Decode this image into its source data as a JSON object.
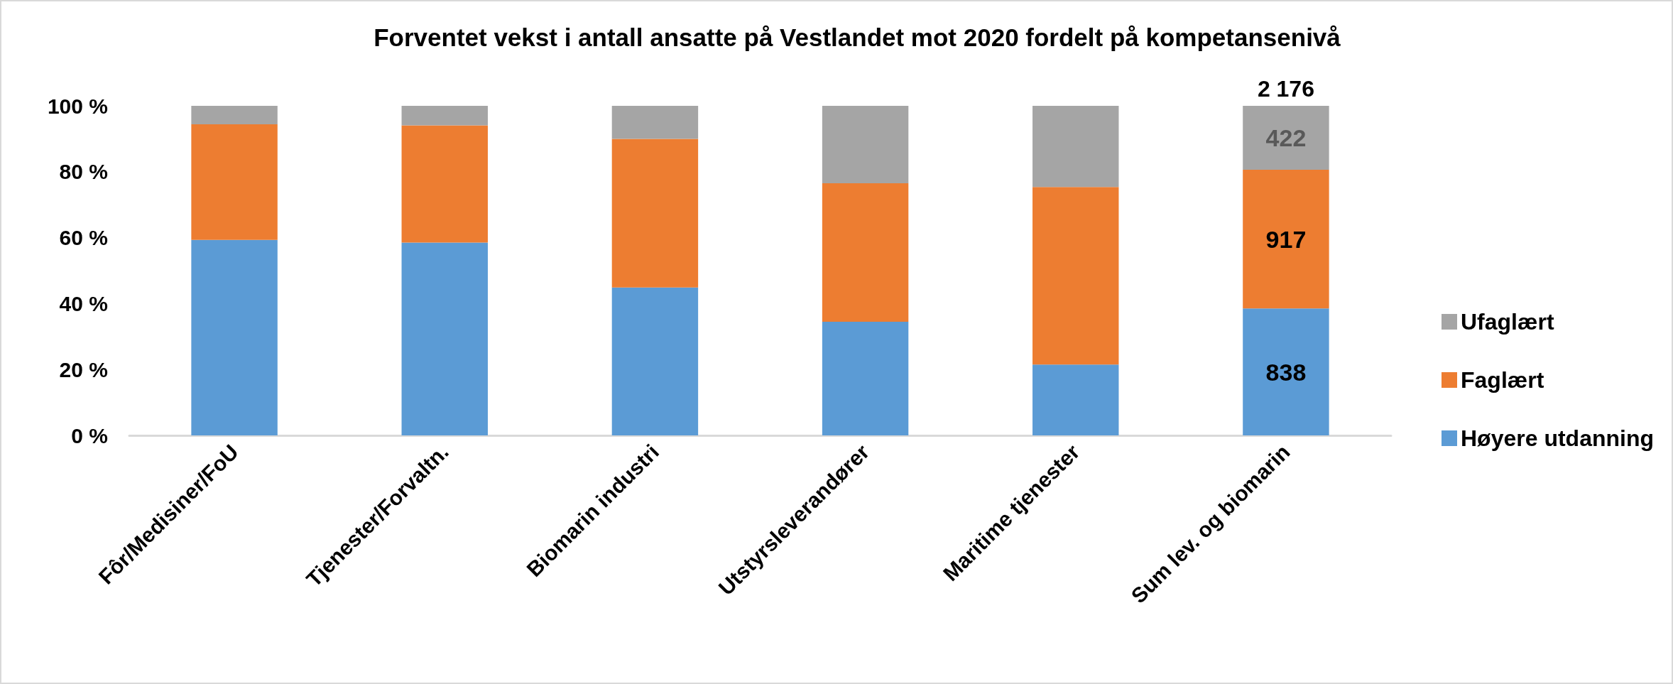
{
  "chart_data": {
    "type": "bar",
    "title": "Forventet vekst i antall ansatte på Vestlandet mot 2020 fordelt på kompetansenivå",
    "categories": [
      "Fôr/Medisiner/FoU",
      "Tjenester/Forvaltn.",
      "Biomarin industri",
      "Utstyrsleverandører",
      "Maritime tjenester",
      "Sum lev. og biomarin"
    ],
    "stacked": true,
    "series": [
      {
        "name": "Høyere utdanning",
        "color": "#5b9bd5",
        "values": [
          59.3,
          58.5,
          44.9,
          34.5,
          21.5,
          38.5
        ]
      },
      {
        "name": "Faglært",
        "color": "#ed7d31",
        "values": [
          35.1,
          35.6,
          45.1,
          42.0,
          53.9,
          42.1
        ]
      },
      {
        "name": "Ufaglært",
        "color": "#a5a5a5",
        "values": [
          5.6,
          5.9,
          10.0,
          23.5,
          24.6,
          19.4
        ]
      }
    ],
    "annotations": [
      "838",
      "917",
      "422",
      {
        "text": "2 176",
        "x": "Sum lev. og biomarin",
        "y": 100
      }
    ],
    "ylim": [
      0,
      100
    ],
    "yticks": [
      {
        "value": 0,
        "label": "0 %"
      },
      {
        "value": 20,
        "label": "20 %"
      },
      {
        "value": 40,
        "label": "40 %"
      },
      {
        "value": 60,
        "label": "60 %"
      },
      {
        "value": 80,
        "label": "80 %"
      },
      {
        "value": 100,
        "label": "100 %"
      }
    ],
    "grid": false,
    "legend": "right"
  }
}
